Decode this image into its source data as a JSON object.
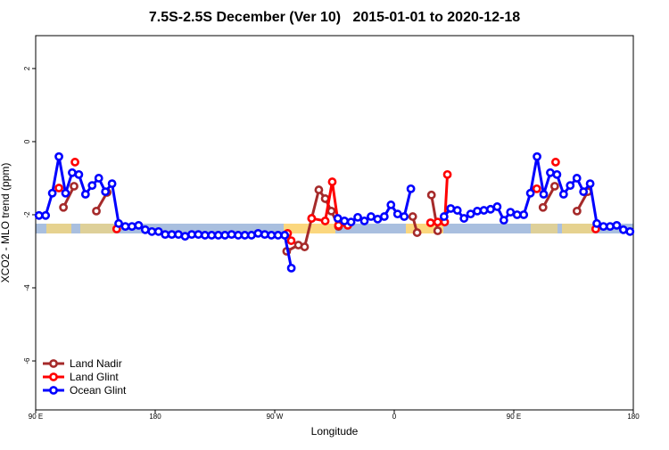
{
  "chart_data": {
    "type": "line",
    "title": "7.5S-2.5S December (Ver 10)   2015-01-01 to 2020-12-18",
    "x_label": "Longitude",
    "y_label": "XCO2 - MLO trend (ppm)",
    "xlim": [
      90,
      540
    ],
    "ylim": [
      -7.34,
      2.9
    ],
    "xticks": [
      {
        "value": 90,
        "label": "90 E"
      },
      180,
      {
        "value": 270,
        "label": "90 W"
      },
      {
        "value": 360,
        "label": "0"
      },
      {
        "value": 450,
        "label": "90 E"
      },
      {
        "value": 540,
        "label": "180"
      }
    ],
    "yticks": [
      -6,
      -4,
      -2,
      0,
      2
    ],
    "legend": "bottom-left",
    "series": [
      {
        "name": "Land Nadir",
        "color": "#a52a2a",
        "x": [
          110.9,
          118.9,
          null,
          135.7,
          143.8,
          null,
          279,
          287.8,
          292.5,
          297.8,
          303.2,
          308,
          312.6,
          318,
          null,
          373.9,
          377.2,
          null,
          388,
          392.7,
          null,
          472,
          480.8,
          null,
          497.6,
          505.7
        ],
        "values": [
          -1.8,
          -1.22,
          null,
          -1.9,
          -1.39,
          null,
          -3.0,
          -2.83,
          -2.88,
          -2.1,
          -1.32,
          -1.56,
          -1.9,
          -2.32,
          null,
          -2.05,
          -2.49,
          null,
          -1.46,
          -2.44,
          null,
          -1.8,
          -1.22,
          null,
          -1.9,
          -1.37
        ]
      },
      {
        "name": "Land Glint",
        "color": "#ff0000",
        "x": [
          107.5,
          null,
          119.6,
          null,
          151,
          null,
          279.7,
          282.4,
          null,
          297.8,
          308,
          313.3,
          318,
          325,
          null,
          387.3,
          null,
          392.7,
          398,
          400,
          null,
          467.3,
          null,
          481.5,
          null,
          511.7
        ],
        "values": [
          -1.27,
          null,
          -0.56,
          null,
          -2.39,
          null,
          -2.51,
          -2.71,
          null,
          -2.1,
          -2.17,
          -1.1,
          -2.29,
          -2.29,
          null,
          -2.22,
          null,
          -2.2,
          -2.2,
          -0.9,
          null,
          -1.29,
          null,
          -0.56,
          null,
          -2.39
        ]
      },
      {
        "name": "Ocean Glint",
        "color": "#0000ff",
        "x": [
          92.5,
          97.5,
          102.5,
          107.5,
          112.5,
          117.5,
          122.5,
          127.5,
          132.5,
          137.5,
          142.5,
          147.5,
          152.5,
          157.5,
          162.5,
          167.5,
          172.5,
          177.5,
          182.5,
          187.5,
          192.5,
          197.5,
          202.5,
          207.5,
          212.5,
          217.5,
          222.5,
          227.5,
          232.5,
          237.5,
          242.5,
          247.5,
          252.5,
          257.5,
          262.5,
          267.5,
          272.5,
          277.5,
          282.5,
          null,
          317.5,
          322.5,
          327.5,
          332.5,
          337.5,
          342.5,
          347.5,
          352.5,
          357.5,
          362.5,
          367.5,
          372.5,
          null,
          397.5,
          402.5,
          407.5,
          412.5,
          417.5,
          422.5,
          427.5,
          432.5,
          437.5,
          442.5,
          447.5,
          452.5,
          457.5,
          462.5,
          467.5,
          472.5,
          477.5,
          482.5,
          487.5,
          492.5,
          497.5,
          502.5,
          507.5,
          512.5,
          517.5,
          522.5,
          527.5,
          532.5,
          537.5
        ],
        "values": [
          -2.02,
          -2.02,
          -1.41,
          -0.41,
          -1.41,
          -0.85,
          -0.9,
          -1.44,
          -1.2,
          -1.0,
          -1.37,
          -1.15,
          -2.24,
          -2.32,
          -2.32,
          -2.29,
          -2.41,
          -2.46,
          -2.46,
          -2.54,
          -2.54,
          -2.54,
          -2.59,
          -2.54,
          -2.54,
          -2.56,
          -2.56,
          -2.56,
          -2.56,
          -2.54,
          -2.56,
          -2.56,
          -2.56,
          -2.51,
          -2.54,
          -2.56,
          -2.56,
          -2.56,
          -3.46,
          null,
          -2.1,
          -2.17,
          -2.2,
          -2.07,
          -2.17,
          -2.05,
          -2.12,
          -2.05,
          -1.73,
          -1.98,
          -2.05,
          -1.29,
          null,
          -2.05,
          -1.83,
          -1.88,
          -2.1,
          -1.98,
          -1.9,
          -1.88,
          -1.85,
          -1.78,
          -2.15,
          -1.93,
          -2.0,
          -2.0,
          -1.41,
          -0.41,
          -1.44,
          -0.85,
          -0.9,
          -1.44,
          -1.2,
          -1.0,
          -1.37,
          -1.15,
          -2.24,
          -2.32,
          -2.32,
          -2.29,
          -2.41,
          -2.46
        ]
      }
    ]
  }
}
